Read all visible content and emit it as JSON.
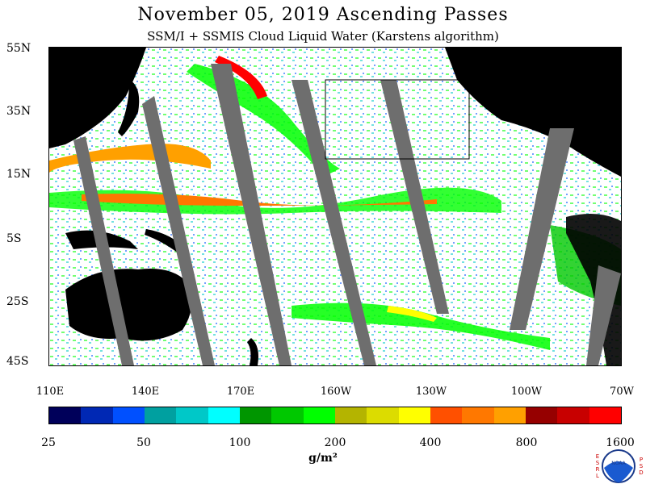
{
  "title": "November 05, 2019  Ascending Passes",
  "subtitle": "SSM/I + SSMIS Cloud Liquid Water (Karstens algorithm)",
  "map": {
    "lat_labels": [
      "55N",
      "35N",
      "15N",
      "5S",
      "25S",
      "45S"
    ],
    "lon_labels": [
      "110E",
      "140E",
      "170E",
      "160W",
      "130W",
      "100W",
      "70W"
    ]
  },
  "colorbar": {
    "colors": [
      "#00005a",
      "#0028b4",
      "#0050ff",
      "#00a0a0",
      "#00c8c8",
      "#00ffff",
      "#009600",
      "#00c800",
      "#00ff00",
      "#b4b400",
      "#dcdc00",
      "#ffff00",
      "#ff5000",
      "#ff7800",
      "#ffa000",
      "#960000",
      "#c80000",
      "#ff0000"
    ],
    "tick_labels": [
      "25",
      "50",
      "100",
      "200",
      "400",
      "800",
      "1600"
    ]
  },
  "units": "g/m²",
  "logo": {
    "left_letters": "ESRL",
    "right_letters": "PSD",
    "text": "NOAA"
  }
}
